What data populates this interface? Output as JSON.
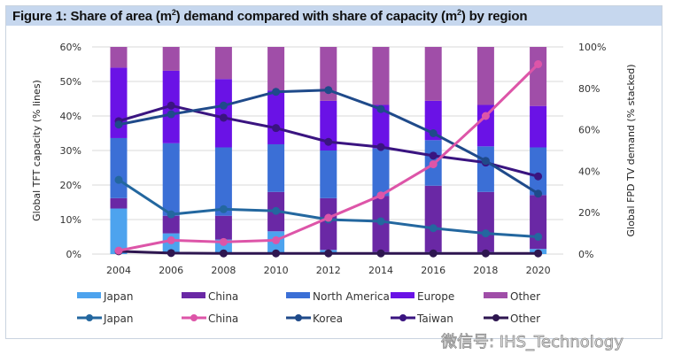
{
  "figure": {
    "title_main": "Figure 1: Share of area (m",
    "title_sup1": "2",
    "title_mid": ") demand compared with share of capacity (m",
    "title_sup2": "2",
    "title_end": ") by region"
  },
  "watermark": "微信号: IHS_Technology",
  "chart_data": {
    "type": "bar+line",
    "title": "Figure 1: Share of area (m2) demand compared with share of capacity (m2) by region",
    "categories": [
      "2004",
      "2006",
      "2008",
      "2010",
      "2012",
      "2014",
      "2016",
      "2018",
      "2020"
    ],
    "left_axis": {
      "label": "Global TFT capacity (% lines)",
      "range": [
        0,
        60
      ],
      "ticks": [
        "0%",
        "10%",
        "20%",
        "30%",
        "40%",
        "50%",
        "60%"
      ]
    },
    "right_axis": {
      "label": "Global FPD TV demand (% stacked)",
      "range": [
        0,
        100
      ],
      "ticks": [
        "0%",
        "20%",
        "40%",
        "60%",
        "80%",
        "100%"
      ]
    },
    "grid": true,
    "legend_position": "bottom",
    "bar_series": [
      {
        "name": "Japan",
        "color": "#4da3ee",
        "values": [
          22,
          10,
          7,
          11,
          2,
          1,
          1,
          1,
          2.5
        ]
      },
      {
        "name": "China",
        "color": "#6a28a5",
        "values": [
          5,
          8.5,
          11.5,
          19,
          25,
          27,
          32,
          29,
          26
        ]
      },
      {
        "name": "North America",
        "color": "#3b6fd6",
        "values": [
          29,
          35,
          33,
          23,
          23,
          23,
          22,
          22,
          23
        ]
      },
      {
        "name": "Europe",
        "color": "#6a12e6",
        "values": [
          34,
          35,
          33,
          26,
          24,
          21,
          19,
          20,
          20
        ]
      },
      {
        "name": "Other",
        "color": "#a04ea8",
        "values": [
          10,
          11.5,
          15.5,
          21,
          26,
          28,
          26,
          28,
          28.5
        ]
      }
    ],
    "line_series": [
      {
        "name": "Japan",
        "color": "#23679f",
        "values": [
          21.5,
          11.5,
          13,
          12.5,
          10,
          9.5,
          7.5,
          6,
          5
        ]
      },
      {
        "name": "China",
        "color": "#dd55a8",
        "values": [
          1,
          4,
          3.5,
          4,
          10.5,
          17,
          26,
          40,
          55
        ]
      },
      {
        "name": "Korea",
        "color": "#1f4a8a",
        "values": [
          37.5,
          40.5,
          43,
          47,
          47.5,
          42,
          35,
          27,
          17.5
        ]
      },
      {
        "name": "Taiwan",
        "color": "#3a1480",
        "values": [
          38.5,
          43,
          39.5,
          36.5,
          32.5,
          31,
          28.5,
          26.5,
          22.5
        ]
      },
      {
        "name": "Other",
        "color": "#2e1650",
        "values": [
          0.8,
          0.3,
          0.2,
          0.2,
          0.2,
          0.2,
          0.2,
          0.2,
          0.2
        ]
      }
    ]
  }
}
